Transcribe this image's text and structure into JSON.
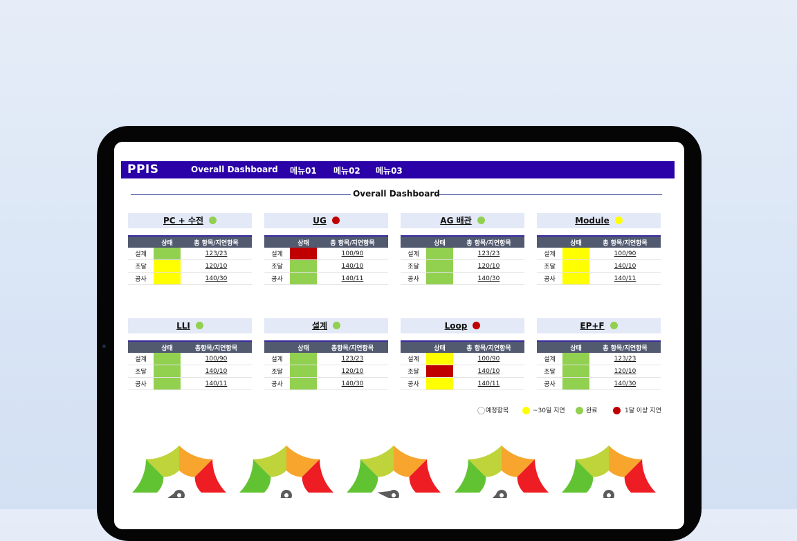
{
  "app": {
    "brand": "PPIS",
    "nav": [
      "Overall Dashboard",
      "메뉴01",
      "메뉴02",
      "메뉴03"
    ]
  },
  "section_title": "Overall Dashboard",
  "colors": {
    "navbar": "#2a02a8",
    "green": "#92d050",
    "yellow": "#ffff00",
    "red": "#c00000",
    "planned": "#ffffff"
  },
  "cards": [
    {
      "title": "PC + 수전",
      "status": "green",
      "headers": [
        "",
        "상태",
        "총 항목/지연항목"
      ],
      "rows": [
        {
          "label": "설계",
          "status": "green",
          "value": "123/23"
        },
        {
          "label": "조달",
          "status": "yellow",
          "value": "120/10"
        },
        {
          "label": "공사",
          "status": "yellow",
          "value": "140/30"
        }
      ]
    },
    {
      "title": "UG",
      "status": "red",
      "headers": [
        "",
        "상태",
        "총 항목/지연항목"
      ],
      "rows": [
        {
          "label": "설계",
          "status": "red",
          "value": "100/90"
        },
        {
          "label": "조달",
          "status": "green",
          "value": "140/10"
        },
        {
          "label": "공사",
          "status": "green",
          "value": "140/11"
        }
      ]
    },
    {
      "title": "AG 배관",
      "status": "green",
      "headers": [
        "",
        "상태",
        "총 항목/지연항목"
      ],
      "rows": [
        {
          "label": "설계",
          "status": "green",
          "value": "123/23"
        },
        {
          "label": "조달",
          "status": "green",
          "value": "120/10"
        },
        {
          "label": "공사",
          "status": "green",
          "value": "140/30"
        }
      ]
    },
    {
      "title": "Module",
      "status": "yellow",
      "headers": [
        "",
        "상태",
        "총 항목/지연항목"
      ],
      "rows": [
        {
          "label": "설계",
          "status": "yellow",
          "value": "100/90"
        },
        {
          "label": "조달",
          "status": "yellow",
          "value": "140/10"
        },
        {
          "label": "공사",
          "status": "yellow",
          "value": "140/11"
        }
      ]
    },
    {
      "title": "LLI",
      "status": "green",
      "headers": [
        "",
        "상태",
        "총항목/지연항목"
      ],
      "rows": [
        {
          "label": "설계",
          "status": "green",
          "value": "100/90"
        },
        {
          "label": "조달",
          "status": "green",
          "value": "140/10"
        },
        {
          "label": "공사",
          "status": "green",
          "value": "140/11"
        }
      ]
    },
    {
      "title": "설계",
      "status": "green",
      "headers": [
        "",
        "상태",
        "총항목/지연항목"
      ],
      "rows": [
        {
          "label": "설계",
          "status": "green",
          "value": "123/23"
        },
        {
          "label": "조달",
          "status": "green",
          "value": "120/10"
        },
        {
          "label": "공사",
          "status": "green",
          "value": "140/30"
        }
      ]
    },
    {
      "title": "Loop",
      "status": "red",
      "headers": [
        "",
        "상태",
        "총 항목/지연항목"
      ],
      "rows": [
        {
          "label": "설계",
          "status": "yellow",
          "value": "100/90"
        },
        {
          "label": "조달",
          "status": "red",
          "value": "140/10"
        },
        {
          "label": "공사",
          "status": "yellow",
          "value": "140/11"
        }
      ]
    },
    {
      "title": "EP+F",
      "status": "green",
      "headers": [
        "",
        "상태",
        "총 항목/지연항목"
      ],
      "rows": [
        {
          "label": "설계",
          "status": "green",
          "value": "123/23"
        },
        {
          "label": "조달",
          "status": "green",
          "value": "120/10"
        },
        {
          "label": "공사",
          "status": "green",
          "value": "140/30"
        }
      ]
    }
  ],
  "legend": [
    {
      "label": "예정항목",
      "status": "planned"
    },
    {
      "label": "~30일 지연",
      "status": "yellow"
    },
    {
      "label": "완료",
      "status": "green"
    },
    {
      "label": "1달 이상 지연",
      "status": "red"
    }
  ],
  "gauges": [
    {
      "needle_angle_deg": 200
    },
    {
      "needle_angle_deg": 235
    },
    {
      "needle_angle_deg": 170
    },
    {
      "needle_angle_deg": 210
    },
    {
      "needle_angle_deg": 240
    }
  ]
}
